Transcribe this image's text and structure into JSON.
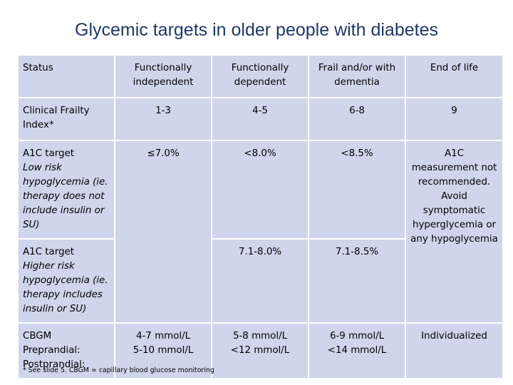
{
  "title": "Glycemic targets in older people with diabetes",
  "headers": {
    "status": "Status",
    "col1": "Functionally independent",
    "col2": "Functionally dependent",
    "col3": "Frail and/or with dementia",
    "col4": "End of life"
  },
  "frailty": {
    "label": "Clinical Frailty Index*",
    "col1": "1-3",
    "col2": "4-5",
    "col3": "6-8",
    "col4": "9"
  },
  "a1c_low": {
    "label": "A1C target",
    "sublabel": "Low risk hypoglycemia (ie. therapy does not include insulin or SU)",
    "col1": "≤7.0%",
    "col2": "<8.0%",
    "col3": "<8.5%"
  },
  "a1c_high": {
    "label": "A1C target",
    "sublabel": "Higher risk hypoglycemia (ie. therapy includes insulin or SU)",
    "col2": "7.1-8.0%",
    "col3": "7.1-8.5%"
  },
  "a1c_end_of_life": "A1C measurement not recommended. Avoid symptomatic hyperglycemia or any hypoglycemia",
  "cbgm": {
    "label": "CBGM",
    "preprandial_label": "Preprandial:",
    "postprandial_label": "Postprandial:",
    "col1_pre": "4-7 mmol/L",
    "col1_post": "5-10 mmol/L",
    "col2_pre": "5-8 mmol/L",
    "col2_post": "<12 mmol/L",
    "col3_pre": "6-9 mmol/L",
    "col3_post": "<14 mmol/L",
    "col4": "Individualized"
  },
  "footnote": "* See slide 5. CBGM = capillary blood glucose monitoring"
}
